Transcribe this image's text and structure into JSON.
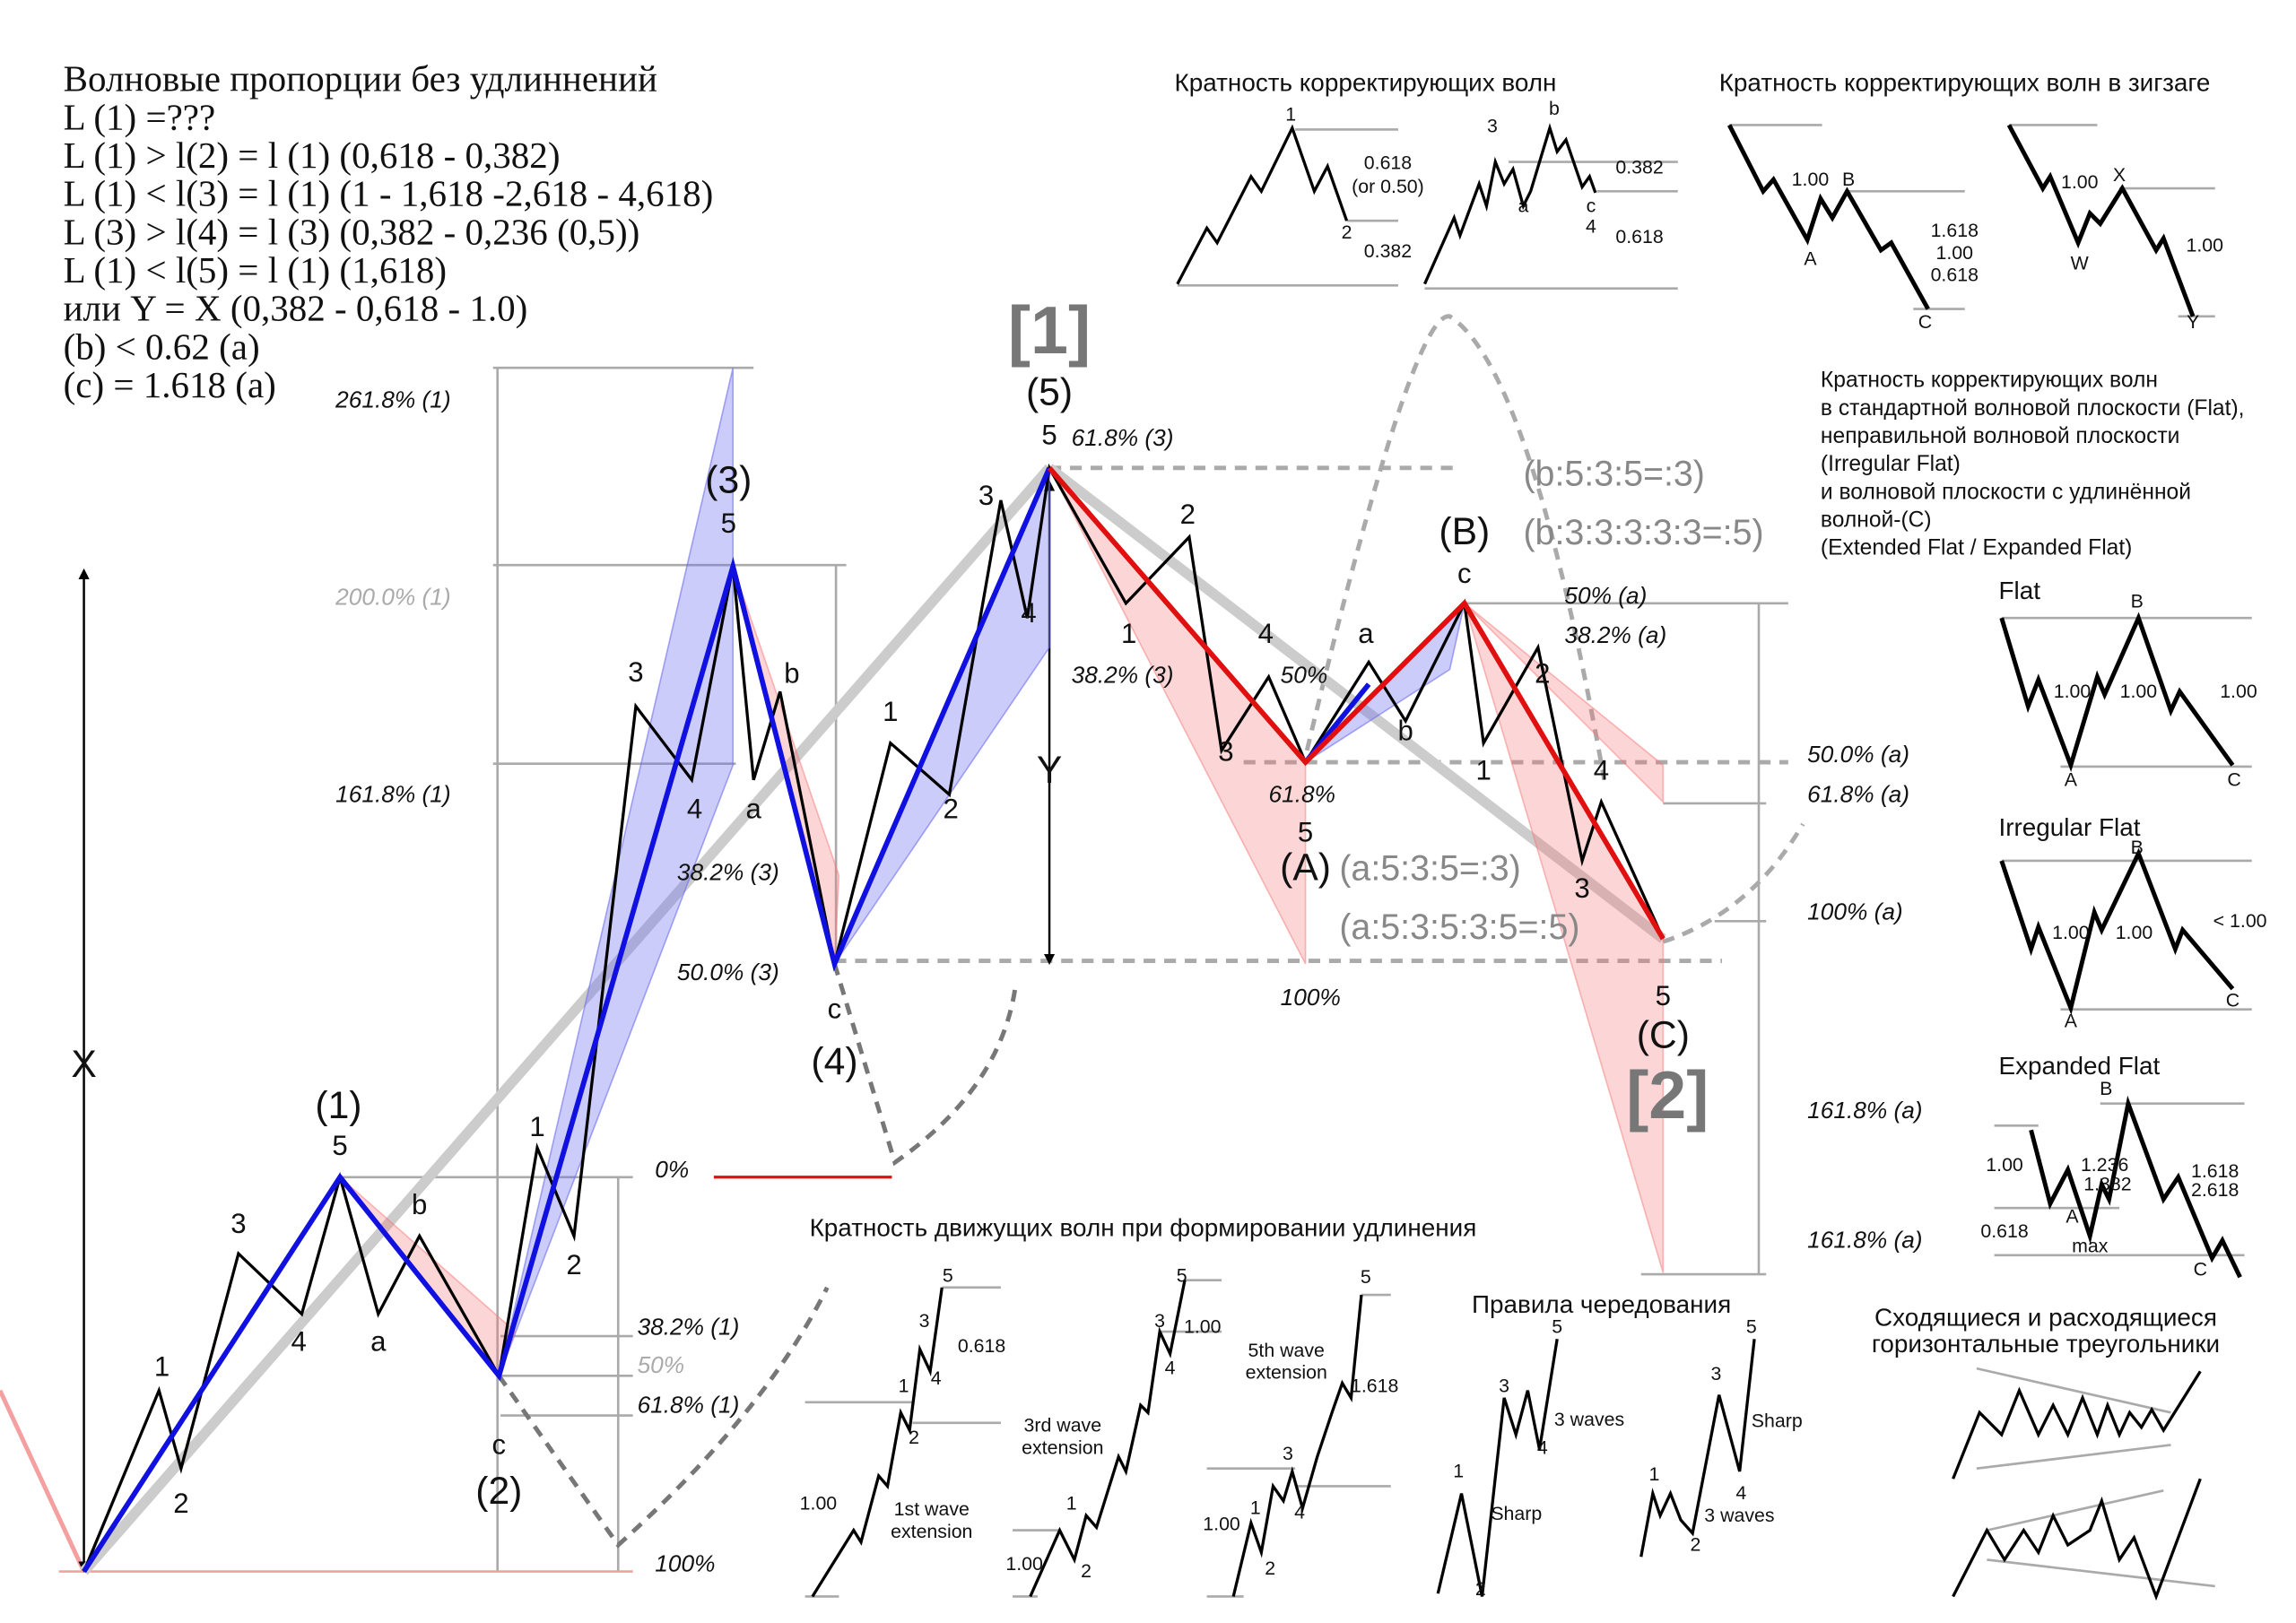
{
  "notes": {
    "title": "Волновые пропорции без удлиннений",
    "lines": [
      "L (1) =???",
      "L (1) > l(2) = l (1) (0,618 - 0,382)",
      "L (1) < l(3) = l (1) (1 - 1,618 -2,618 - 4,618)",
      "L (3) > l(4) = l (3) (0,382 - 0,236 (0,5))",
      "L (1) < l(5) = l (1) (1,618)",
      "или Y = X (0,382 - 0,618 - 1.0)",
      "(b) < 0.62 (a)",
      "(c) = 1.618 (a)"
    ]
  },
  "colors": {
    "impulse": "#1010e0",
    "correction": "#e01010",
    "blue_shade": "#9a9af0",
    "pink_shade": "#f5b0b0",
    "guide": "#aaaaaa"
  },
  "main": {
    "levels": [
      "261.8% (1)",
      "200.0% (1)",
      "161.8% (1)",
      "38.2% (3)",
      "50.0% (3)",
      "0%",
      "38.2% (1)",
      "50%",
      "61.8% (1)",
      "100%",
      "61.8% (3)",
      "38.2% (3)",
      "50%",
      "61.8%",
      "100%",
      "50% (a)",
      "38.2% (a)",
      "50.0% (a)",
      "61.8% (a)",
      "100% (a)",
      "161.8% (a)",
      "161.8% (a)"
    ],
    "degrees": {
      "w1": "(1)",
      "w2": "(2)",
      "w3": "(3)",
      "w4": "(4)",
      "w5": "(5)",
      "A": "(A)",
      "B": "(B)",
      "C": "(C)",
      "big1": "[1]",
      "big2": "[2]",
      "X": "X",
      "Y": "Y"
    },
    "structure": {
      "b1": "(b:5:3:5=:3)",
      "b2": "(b:3:3:3:3:3=:5)",
      "a1": "(a:5:3:5=:3)",
      "a2": "(a:5:3:5:3:5=:5)"
    },
    "wave_labels": [
      "1",
      "2",
      "3",
      "4",
      "5",
      "b",
      "a",
      "c",
      "1",
      "2",
      "3",
      "4",
      "5",
      "b",
      "a",
      "c",
      "1",
      "2",
      "3",
      "4",
      "5",
      "1",
      "2",
      "3",
      "4",
      "5",
      "a",
      "b",
      "c",
      "1",
      "2",
      "3",
      "4",
      "5"
    ]
  },
  "corrective": {
    "title": "Кратность корректирующих волн",
    "g1": [
      "1",
      "2",
      "0.618",
      "(or 0.50)",
      "0.382"
    ],
    "g2": [
      "3",
      "b",
      "a",
      "c",
      "4",
      "0.382",
      "0.618"
    ]
  },
  "zigzag": {
    "title": "Кратность корректирующих волн в зигзаге",
    "g1": [
      "1.00",
      "B",
      "A",
      "1.618",
      "1.00",
      "0.618",
      "C"
    ],
    "g2": [
      "1.00",
      "X",
      "W",
      "1.00",
      "Y"
    ]
  },
  "flats": {
    "description": [
      "Кратность корректирующих волн",
      "в стандартной волновой плоскости (Flat),",
      "неправильной волновой плоскости",
      "(Irregular Flat)",
      "и волновой плоскости с удлинённой",
      "волной-(С)",
      "(Extended Flat / Expanded Flat)"
    ],
    "flat": {
      "title": "Flat",
      "labels": [
        "B",
        "A",
        "C",
        "1.00",
        "1.00",
        "1.00"
      ]
    },
    "irregular": {
      "title": "Irregular Flat",
      "labels": [
        "B",
        "A",
        "C",
        "1.00",
        "1.00",
        "< 1.00"
      ]
    },
    "expanded": {
      "title": "Expanded Flat",
      "labels": [
        "B",
        "A",
        "C",
        "1.00",
        "1.236",
        "1.382",
        "0.618",
        "max",
        "1.618",
        "2.618"
      ]
    }
  },
  "extension": {
    "title": "Кратность движущих волн при формировании удлинения",
    "first": [
      "1",
      "2",
      "3",
      "4",
      "5",
      "0.618",
      "1.00",
      "1st wave",
      "extension"
    ],
    "third": [
      "1",
      "2",
      "3",
      "4",
      "5",
      "1.00",
      "3rd wave",
      "extension",
      "1.00"
    ],
    "fifth": [
      "1",
      "2",
      "3",
      "4",
      "5",
      "1.00",
      "1.618",
      "5th wave",
      "extension"
    ]
  },
  "alternation": {
    "title": "Правила чередования",
    "left": [
      "1",
      "2",
      "3",
      "4",
      "5",
      "3 waves",
      "Sharp"
    ],
    "right": [
      "1",
      "2",
      "3",
      "4",
      "5",
      "Sharp",
      "3 waves"
    ]
  },
  "triangles": {
    "title": [
      "Сходящиеся и расходящиеся",
      "горизонтальные треугольники"
    ]
  }
}
